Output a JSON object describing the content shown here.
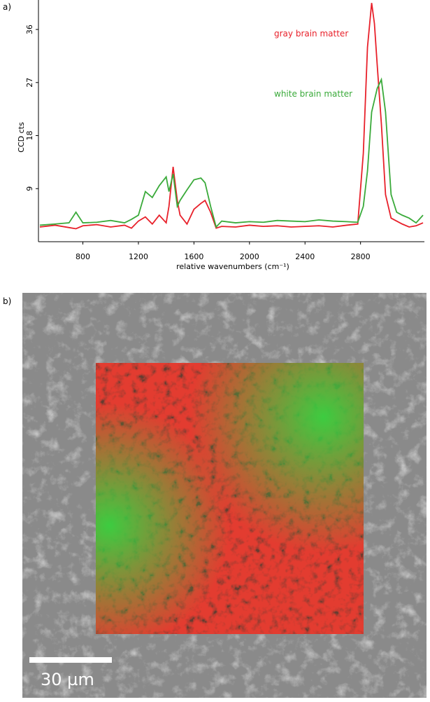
{
  "chart_data": {
    "type": "line",
    "panel_label": "a)",
    "x_label": "relative wavenumbers (cm⁻¹)",
    "y_label": "CCD cts",
    "x": [
      490,
      600,
      700,
      750,
      800,
      900,
      1000,
      1100,
      1150,
      1200,
      1250,
      1300,
      1350,
      1400,
      1420,
      1450,
      1480,
      1500,
      1550,
      1600,
      1650,
      1680,
      1720,
      1760,
      1800,
      1900,
      2000,
      2100,
      2200,
      2300,
      2400,
      2500,
      2600,
      2700,
      2780,
      2820,
      2850,
      2880,
      2900,
      2920,
      2950,
      2980,
      3020,
      3060,
      3100,
      3150,
      3200,
      3250
    ],
    "series": [
      {
        "name": "gray brain matter",
        "color": "#e8202a",
        "values": [
          2.5,
          2.8,
          2.4,
          2.2,
          2.7,
          2.9,
          2.5,
          2.8,
          2.3,
          3.5,
          4.2,
          3.0,
          4.5,
          3.2,
          6,
          12.7,
          7,
          4.5,
          3.0,
          5.5,
          6.5,
          7.0,
          5.0,
          2.3,
          2.6,
          2.5,
          2.8,
          2.6,
          2.7,
          2.5,
          2.6,
          2.7,
          2.5,
          2.8,
          3.0,
          15,
          33,
          40.5,
          37,
          30,
          20,
          8,
          4,
          3.5,
          3.0,
          2.5,
          2.7,
          3.2
        ]
      },
      {
        "name": "white brain matter",
        "color": "#3aaa3a",
        "values": [
          2.8,
          3.0,
          3.2,
          5.0,
          3.2,
          3.3,
          3.6,
          3.2,
          3.8,
          4.5,
          8.5,
          7.5,
          9.5,
          11,
          8.5,
          11.5,
          6,
          7,
          8.8,
          10.5,
          10.8,
          10.0,
          6,
          2.5,
          3.5,
          3.2,
          3.4,
          3.3,
          3.6,
          3.5,
          3.4,
          3.7,
          3.5,
          3.4,
          3.3,
          6,
          12,
          22,
          24,
          26,
          27.5,
          22,
          8,
          5,
          4.5,
          4,
          3.2,
          4.5
        ]
      }
    ],
    "xlim": [
      480,
      3260
    ],
    "ylim": [
      0,
      41
    ],
    "xticks": [
      800,
      1200,
      1600,
      2000,
      2400,
      2800
    ],
    "yticks": [
      9,
      18,
      27,
      36
    ]
  },
  "image": {
    "panel_label": "b)",
    "scale_label": "30 µm"
  }
}
